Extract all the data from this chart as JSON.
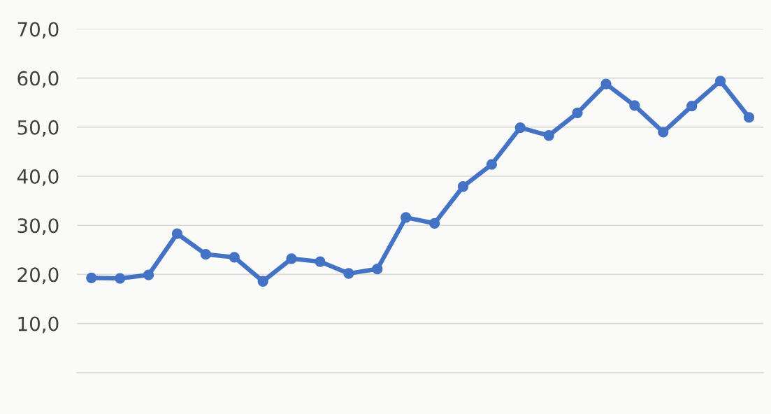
{
  "chart_data": {
    "type": "line",
    "categories": [
      null,
      null,
      null,
      null,
      null,
      null,
      null,
      null,
      null,
      null,
      null,
      null,
      null,
      null,
      null,
      null,
      null,
      null,
      null,
      null,
      null,
      null,
      null,
      null
    ],
    "series": [
      {
        "color": "#4472c4",
        "values": [
          19.3,
          19.2,
          19.9,
          28.3,
          24.1,
          23.5,
          18.6,
          23.2,
          22.6,
          20.2,
          21.1,
          31.6,
          30.4,
          37.9,
          42.4,
          49.9,
          48.3,
          52.9,
          58.8,
          54.4,
          49.0,
          54.3,
          59.4,
          52.0
        ]
      }
    ],
    "ylim": [
      0,
      70
    ],
    "yticks": [
      {
        "value": 10,
        "label": "10,0"
      },
      {
        "value": 20,
        "label": "20,0"
      },
      {
        "value": 30,
        "label": "30,0"
      },
      {
        "value": 40,
        "label": "40,0"
      },
      {
        "value": 50,
        "label": "50,0"
      },
      {
        "value": 60,
        "label": "60,0"
      },
      {
        "value": 70,
        "label": "70,0"
      }
    ],
    "grid": "y",
    "marker": "circle",
    "line_style": "solid",
    "legend": false
  }
}
